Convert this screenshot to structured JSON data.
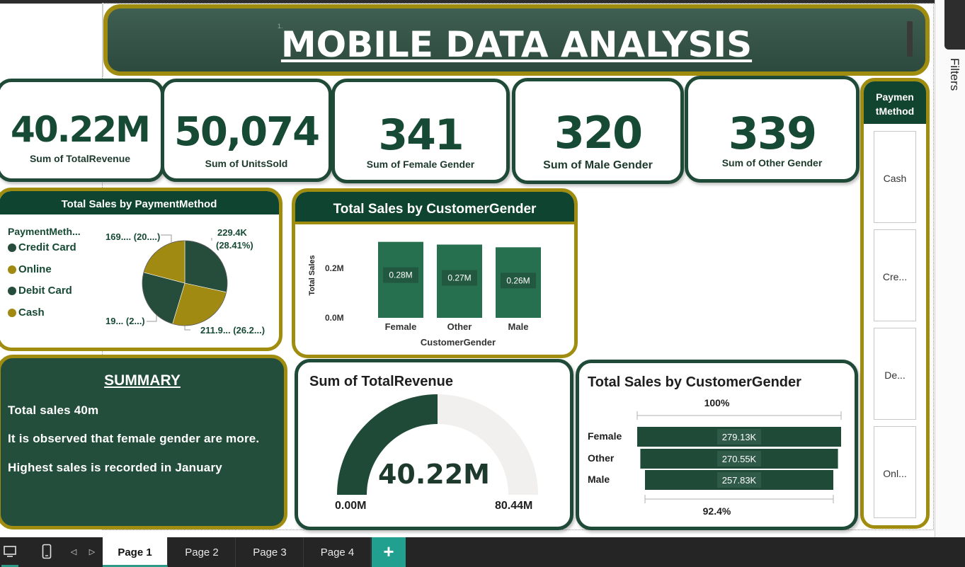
{
  "title": {
    "text": "MOBILE DATA ANALYSIS",
    "marker": "1."
  },
  "filters": {
    "label": "Filters"
  },
  "kpis": [
    {
      "value": "40.22M",
      "label": "Sum of TotalRevenue"
    },
    {
      "value": "50,074",
      "label": "Sum of UnitsSold"
    },
    {
      "value": "341",
      "label": "Sum of Female Gender"
    },
    {
      "value": "320",
      "label": "Sum of Male Gender"
    },
    {
      "value": "339",
      "label": "Sum of Other Gender"
    }
  ],
  "slicer": {
    "header": "Paymen tMethod",
    "items": [
      "Cash",
      "Cre...",
      "De...",
      "Onl..."
    ]
  },
  "pie": {
    "title": "Total Sales by PaymentMethod",
    "legend_title": "PaymentMeth...",
    "legend": [
      {
        "label": "Credit Card",
        "color": "#264d3c"
      },
      {
        "label": "Online",
        "color": "#a08a12"
      },
      {
        "label": "Debit Card",
        "color": "#264d3c"
      },
      {
        "label": "Cash",
        "color": "#a08a12"
      }
    ],
    "labels": {
      "top_left": "169.... (20....)",
      "top_right_1": "229.4K",
      "top_right_2": "(28.41%)",
      "bottom_left": "19... (2...)",
      "bottom_right": "211.9... (26.2...)"
    }
  },
  "gender_bar": {
    "title": "Total Sales by CustomerGender",
    "ylabel": "Total Sales",
    "xlabel": "CustomerGender",
    "yticks": [
      "0.2M",
      "0.0M"
    ]
  },
  "summary": {
    "title": "SUMMARY",
    "lines": [
      "Total sales 40m",
      "It is observed that female gender are more.",
      "Highest sales is recorded in January"
    ]
  },
  "gauge": {
    "title": "Sum of TotalRevenue",
    "value_label": "40.22M",
    "min_label": "0.00M",
    "max_label": "80.44M",
    "value": 40.22,
    "min": 0,
    "max": 80.44
  },
  "funnel": {
    "title": "Total Sales by CustomerGender",
    "top_pct": "100%",
    "bottom_pct": "92.4%"
  },
  "chart_data": [
    {
      "type": "pie",
      "title": "Total Sales by PaymentMethod",
      "categories": [
        "Credit Card",
        "Online",
        "Debit Card",
        "Cash"
      ],
      "values": [
        229.4,
        211.9,
        197,
        169
      ],
      "colors": [
        "#264d3c",
        "#a08a12",
        "#264d3c",
        "#a08a12"
      ]
    },
    {
      "type": "bar",
      "title": "Total Sales by CustomerGender",
      "categories": [
        "Female",
        "Other",
        "Male"
      ],
      "values": [
        0.28,
        0.27,
        0.26
      ],
      "data_labels": [
        "0.28M",
        "0.27M",
        "0.26M"
      ],
      "xlabel": "CustomerGender",
      "ylabel": "Total Sales",
      "ylim": [
        0,
        0.3
      ]
    },
    {
      "type": "bar",
      "title": "Total Sales by CustomerGender",
      "orientation": "horizontal-funnel",
      "categories": [
        "Female",
        "Other",
        "Male"
      ],
      "values": [
        279.13,
        270.55,
        257.83
      ],
      "data_labels": [
        "279.13K",
        "270.55K",
        "257.83K"
      ]
    }
  ],
  "pages": {
    "tabs": [
      "Page 1",
      "Page 2",
      "Page 3",
      "Page 4"
    ],
    "active": "Page 1",
    "add": "+"
  },
  "colors": {
    "dark_green": "#1f4a37",
    "gold": "#a08d10",
    "bar_green": "#27704f"
  }
}
